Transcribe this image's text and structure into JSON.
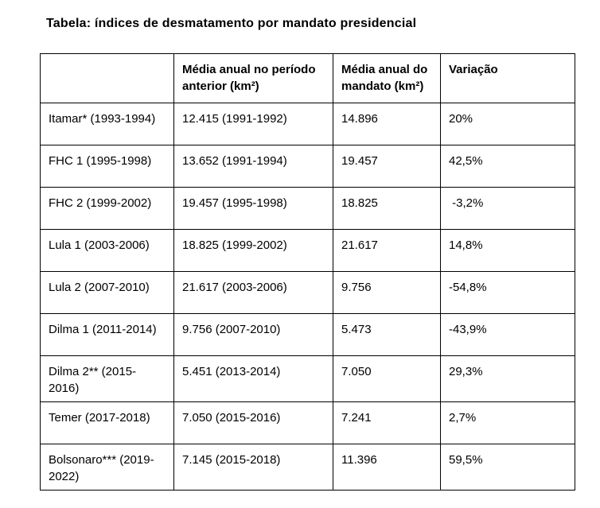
{
  "page": {
    "title": "Tabela: índices de desmatamento por mandato presidencial"
  },
  "table": {
    "columns": {
      "mandate": "",
      "previous_period_avg": "Média anual no período anterior (km²)",
      "mandate_avg": "Média anual do mandato (km²)",
      "variation": "Variação"
    },
    "rows": [
      {
        "mandate": "Itamar* (1993-1994)",
        "previous_period_avg": "12.415 (1991-1992)",
        "mandate_avg": "14.896",
        "variation": "20%"
      },
      {
        "mandate": "FHC 1 (1995-1998)",
        "previous_period_avg": "13.652 (1991-1994)",
        "mandate_avg": "19.457",
        "variation": "42,5%"
      },
      {
        "mandate": "FHC 2 (1999-2002)",
        "previous_period_avg": "19.457 (1995-1998)",
        "mandate_avg": "18.825",
        "variation": " -3,2%"
      },
      {
        "mandate": "Lula 1 (2003-2006)",
        "previous_period_avg": "18.825 (1999-2002)",
        "mandate_avg": "21.617",
        "variation": "14,8%"
      },
      {
        "mandate": "Lula 2 (2007-2010)",
        "previous_period_avg": "21.617 (2003-2006)",
        "mandate_avg": "9.756",
        "variation": "-54,8%"
      },
      {
        "mandate": "Dilma 1 (2011-2014)",
        "previous_period_avg": "9.756 (2007-2010)",
        "mandate_avg": "5.473",
        "variation": "-43,9%"
      },
      {
        "mandate": "Dilma 2** (2015-2016)",
        "previous_period_avg": "5.451 (2013-2014)",
        "mandate_avg": "7.050",
        "variation": "29,3%"
      },
      {
        "mandate": "Temer (2017-2018)",
        "previous_period_avg": "7.050 (2015-2016)",
        "mandate_avg": "7.241",
        "variation": "2,7%"
      },
      {
        "mandate": "Bolsonaro*** (2019-2022)",
        "previous_period_avg": "7.145 (2015-2018)",
        "mandate_avg": "11.396",
        "variation": "59,5%"
      }
    ]
  }
}
